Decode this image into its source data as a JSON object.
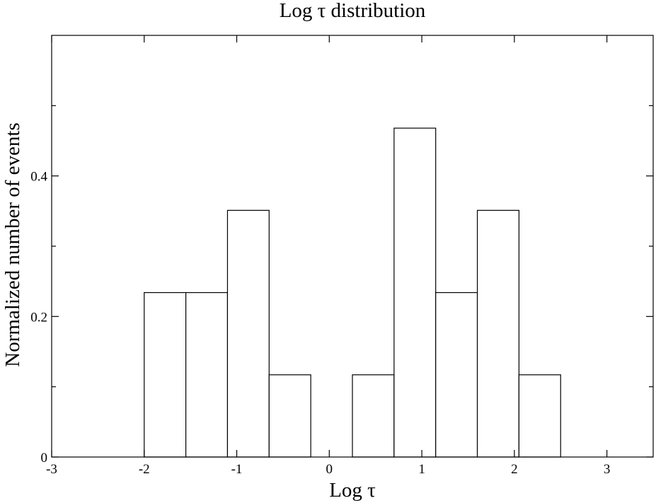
{
  "chart_data": {
    "type": "bar",
    "title": "Log  τ  distribution",
    "xlabel": "Log  τ",
    "ylabel": "Normalized number of events",
    "xlim": [
      -3,
      3.5
    ],
    "ylim": [
      0,
      0.6
    ],
    "x_ticks": [
      -3,
      -2,
      -1,
      0,
      1,
      2,
      3
    ],
    "y_ticks": [
      0,
      0.2,
      0.4
    ],
    "y_tick_labels": [
      "0",
      "0.2",
      "0.4"
    ],
    "grid": false,
    "bins": [
      {
        "x0": -2.0,
        "x1": -1.55,
        "value": 0.234
      },
      {
        "x0": -1.55,
        "x1": -1.1,
        "value": 0.234
      },
      {
        "x0": -1.1,
        "x1": -0.65,
        "value": 0.351
      },
      {
        "x0": -0.65,
        "x1": -0.2,
        "value": 0.117
      },
      {
        "x0": -0.2,
        "x1": 0.25,
        "value": 0.0
      },
      {
        "x0": 0.25,
        "x1": 0.7,
        "value": 0.117
      },
      {
        "x0": 0.7,
        "x1": 1.15,
        "value": 0.468
      },
      {
        "x0": 1.15,
        "x1": 1.6,
        "value": 0.234
      },
      {
        "x0": 1.6,
        "x1": 2.05,
        "value": 0.351
      },
      {
        "x0": 2.05,
        "x1": 2.5,
        "value": 0.117
      }
    ],
    "colors": {
      "stroke": "#000000",
      "fill": "#ffffff",
      "background": "#ffffff"
    }
  }
}
